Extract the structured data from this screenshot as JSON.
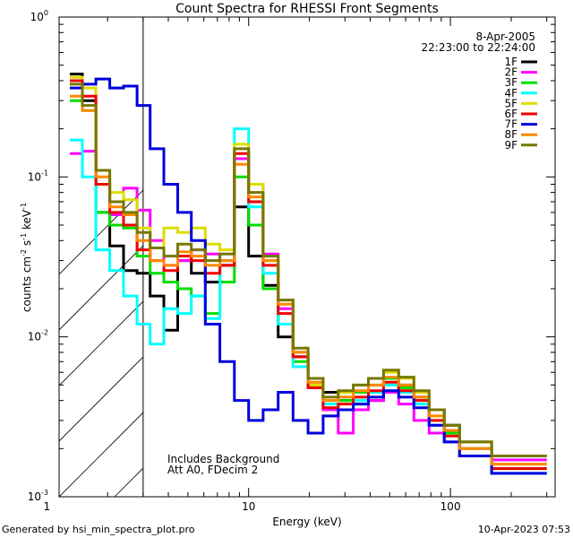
{
  "chart_data": {
    "type": "line",
    "scale": {
      "x": "log",
      "y": "log"
    },
    "title": "Count Spectra for RHESSI Front Segments",
    "xlabel": "Energy (keV)",
    "ylabel": {
      "base": "counts cm",
      "exp1": "-2",
      "mid": " s",
      "exp2": "-1",
      "tail": " keV",
      "exp3": "-1"
    },
    "xlim": [
      1.15,
      330
    ],
    "ylim": [
      0.001,
      1
    ],
    "x_ticks": [
      {
        "value": 1,
        "label": "1"
      },
      {
        "value": 10,
        "label": "10"
      },
      {
        "value": 100,
        "label": "100"
      }
    ],
    "y_ticks": [
      {
        "value": 1,
        "base": "10",
        "exp": "0"
      },
      {
        "value": 0.1,
        "base": "10",
        "exp": "-1"
      },
      {
        "value": 0.01,
        "base": "10",
        "exp": "-2"
      },
      {
        "value": 0.001,
        "base": "10",
        "exp": "-3"
      }
    ],
    "hatched_region": {
      "from": 1.15,
      "to": 3.0
    },
    "date": "8-Apr-2005",
    "time_range": "22:23:00 to 22:24:00",
    "annotations": [
      "Includes Background",
      "Att A0, FDecim 2"
    ],
    "series": [
      {
        "name": "1F",
        "color": "#000000",
        "values": [
          0.44,
          0.3,
          0.06,
          0.037,
          0.026,
          0.025,
          0.018,
          0.011,
          0.03,
          0.025,
          0.022,
          0.028,
          0.065,
          0.032,
          0.021,
          0.01,
          0.0075,
          0.0055,
          0.0045,
          0.004,
          0.0038,
          0.004,
          0.0045,
          0.005,
          0.0042,
          0.0035,
          0.0028,
          0.0022,
          0.0018
        ]
      },
      {
        "name": "2F",
        "color": "#ff00ff",
        "values": [
          0.14,
          0.145,
          0.09,
          0.058,
          0.085,
          0.062,
          0.04,
          0.028,
          0.03,
          0.035,
          0.033,
          0.03,
          0.13,
          0.09,
          0.033,
          0.015,
          0.008,
          0.005,
          0.0035,
          0.0025,
          0.0035,
          0.004,
          0.0045,
          0.0038,
          0.003,
          0.0025,
          0.0022,
          0.002,
          0.0017
        ]
      },
      {
        "name": "3F",
        "color": "#00dd00",
        "values": [
          0.3,
          0.26,
          0.06,
          0.05,
          0.048,
          0.032,
          0.025,
          0.022,
          0.02,
          0.018,
          0.014,
          0.022,
          0.1,
          0.05,
          0.02,
          0.012,
          0.007,
          0.005,
          0.004,
          0.004,
          0.0045,
          0.005,
          0.0055,
          0.0048,
          0.004,
          0.003,
          0.0025,
          0.002,
          0.0015
        ]
      },
      {
        "name": "4F",
        "color": "#00ffff",
        "values": [
          0.17,
          0.1,
          0.035,
          0.026,
          0.018,
          0.012,
          0.009,
          0.015,
          0.014,
          0.018,
          0.013,
          0.03,
          0.2,
          0.065,
          0.025,
          0.012,
          0.0065,
          0.0048,
          0.0038,
          0.0035,
          0.004,
          0.0045,
          0.005,
          0.0045,
          0.0038,
          0.0028,
          0.0022,
          0.0018,
          0.0014
        ]
      },
      {
        "name": "5F",
        "color": "#dddd00",
        "values": [
          0.42,
          0.36,
          0.1,
          0.08,
          0.072,
          0.048,
          0.036,
          0.048,
          0.045,
          0.048,
          0.038,
          0.035,
          0.16,
          0.09,
          0.03,
          0.017,
          0.008,
          0.005,
          0.004,
          0.0045,
          0.005,
          0.0055,
          0.006,
          0.0055,
          0.0045,
          0.0032,
          0.0026,
          0.0022,
          0.0016
        ]
      },
      {
        "name": "6F",
        "color": "#ee0000",
        "values": [
          0.4,
          0.32,
          0.09,
          0.06,
          0.05,
          0.035,
          0.03,
          0.026,
          0.032,
          0.03,
          0.025,
          0.028,
          0.14,
          0.07,
          0.028,
          0.014,
          0.0075,
          0.0048,
          0.0036,
          0.0038,
          0.0042,
          0.0046,
          0.0052,
          0.0046,
          0.004,
          0.003,
          0.0024,
          0.0018,
          0.0015
        ]
      },
      {
        "name": "7F",
        "color": "#0000dd",
        "values": [
          0.36,
          0.38,
          0.41,
          0.36,
          0.37,
          0.28,
          0.15,
          0.09,
          0.06,
          0.04,
          0.012,
          0.007,
          0.004,
          0.003,
          0.0035,
          0.0045,
          0.003,
          0.0025,
          0.0032,
          0.0035,
          0.0038,
          0.0042,
          0.0046,
          0.0042,
          0.0036,
          0.0028,
          0.0022,
          0.0018,
          0.0014
        ]
      },
      {
        "name": "8F",
        "color": "#ff8800",
        "values": [
          0.32,
          0.26,
          0.1,
          0.065,
          0.058,
          0.04,
          0.03,
          0.028,
          0.034,
          0.032,
          0.028,
          0.03,
          0.12,
          0.075,
          0.03,
          0.016,
          0.008,
          0.0052,
          0.004,
          0.0042,
          0.0046,
          0.005,
          0.0056,
          0.005,
          0.0042,
          0.0032,
          0.0026,
          0.002,
          0.0016
        ]
      },
      {
        "name": "9F",
        "color": "#777700",
        "values": [
          0.38,
          0.28,
          0.11,
          0.07,
          0.06,
          0.045,
          0.036,
          0.032,
          0.038,
          0.035,
          0.03,
          0.033,
          0.15,
          0.08,
          0.032,
          0.017,
          0.0085,
          0.0055,
          0.0042,
          0.0046,
          0.005,
          0.0055,
          0.0062,
          0.0056,
          0.0046,
          0.0035,
          0.0028,
          0.0022,
          0.0018
        ]
      }
    ],
    "x_edges": [
      1.3,
      1.5,
      1.75,
      2.05,
      2.4,
      2.8,
      3.25,
      3.8,
      4.45,
      5.2,
      6.1,
      7.2,
      8.5,
      10.0,
      11.8,
      14.0,
      16.6,
      19.7,
      23.4,
      27.8,
      33.0,
      39.2,
      46.6,
      55.4,
      65.9,
      78.4,
      93.2,
      111,
      160,
      300
    ]
  },
  "footer": {
    "generated": "Generated by hsi_min_spectra_plot.pro",
    "timestamp": "10-Apr-2023 07:53"
  }
}
